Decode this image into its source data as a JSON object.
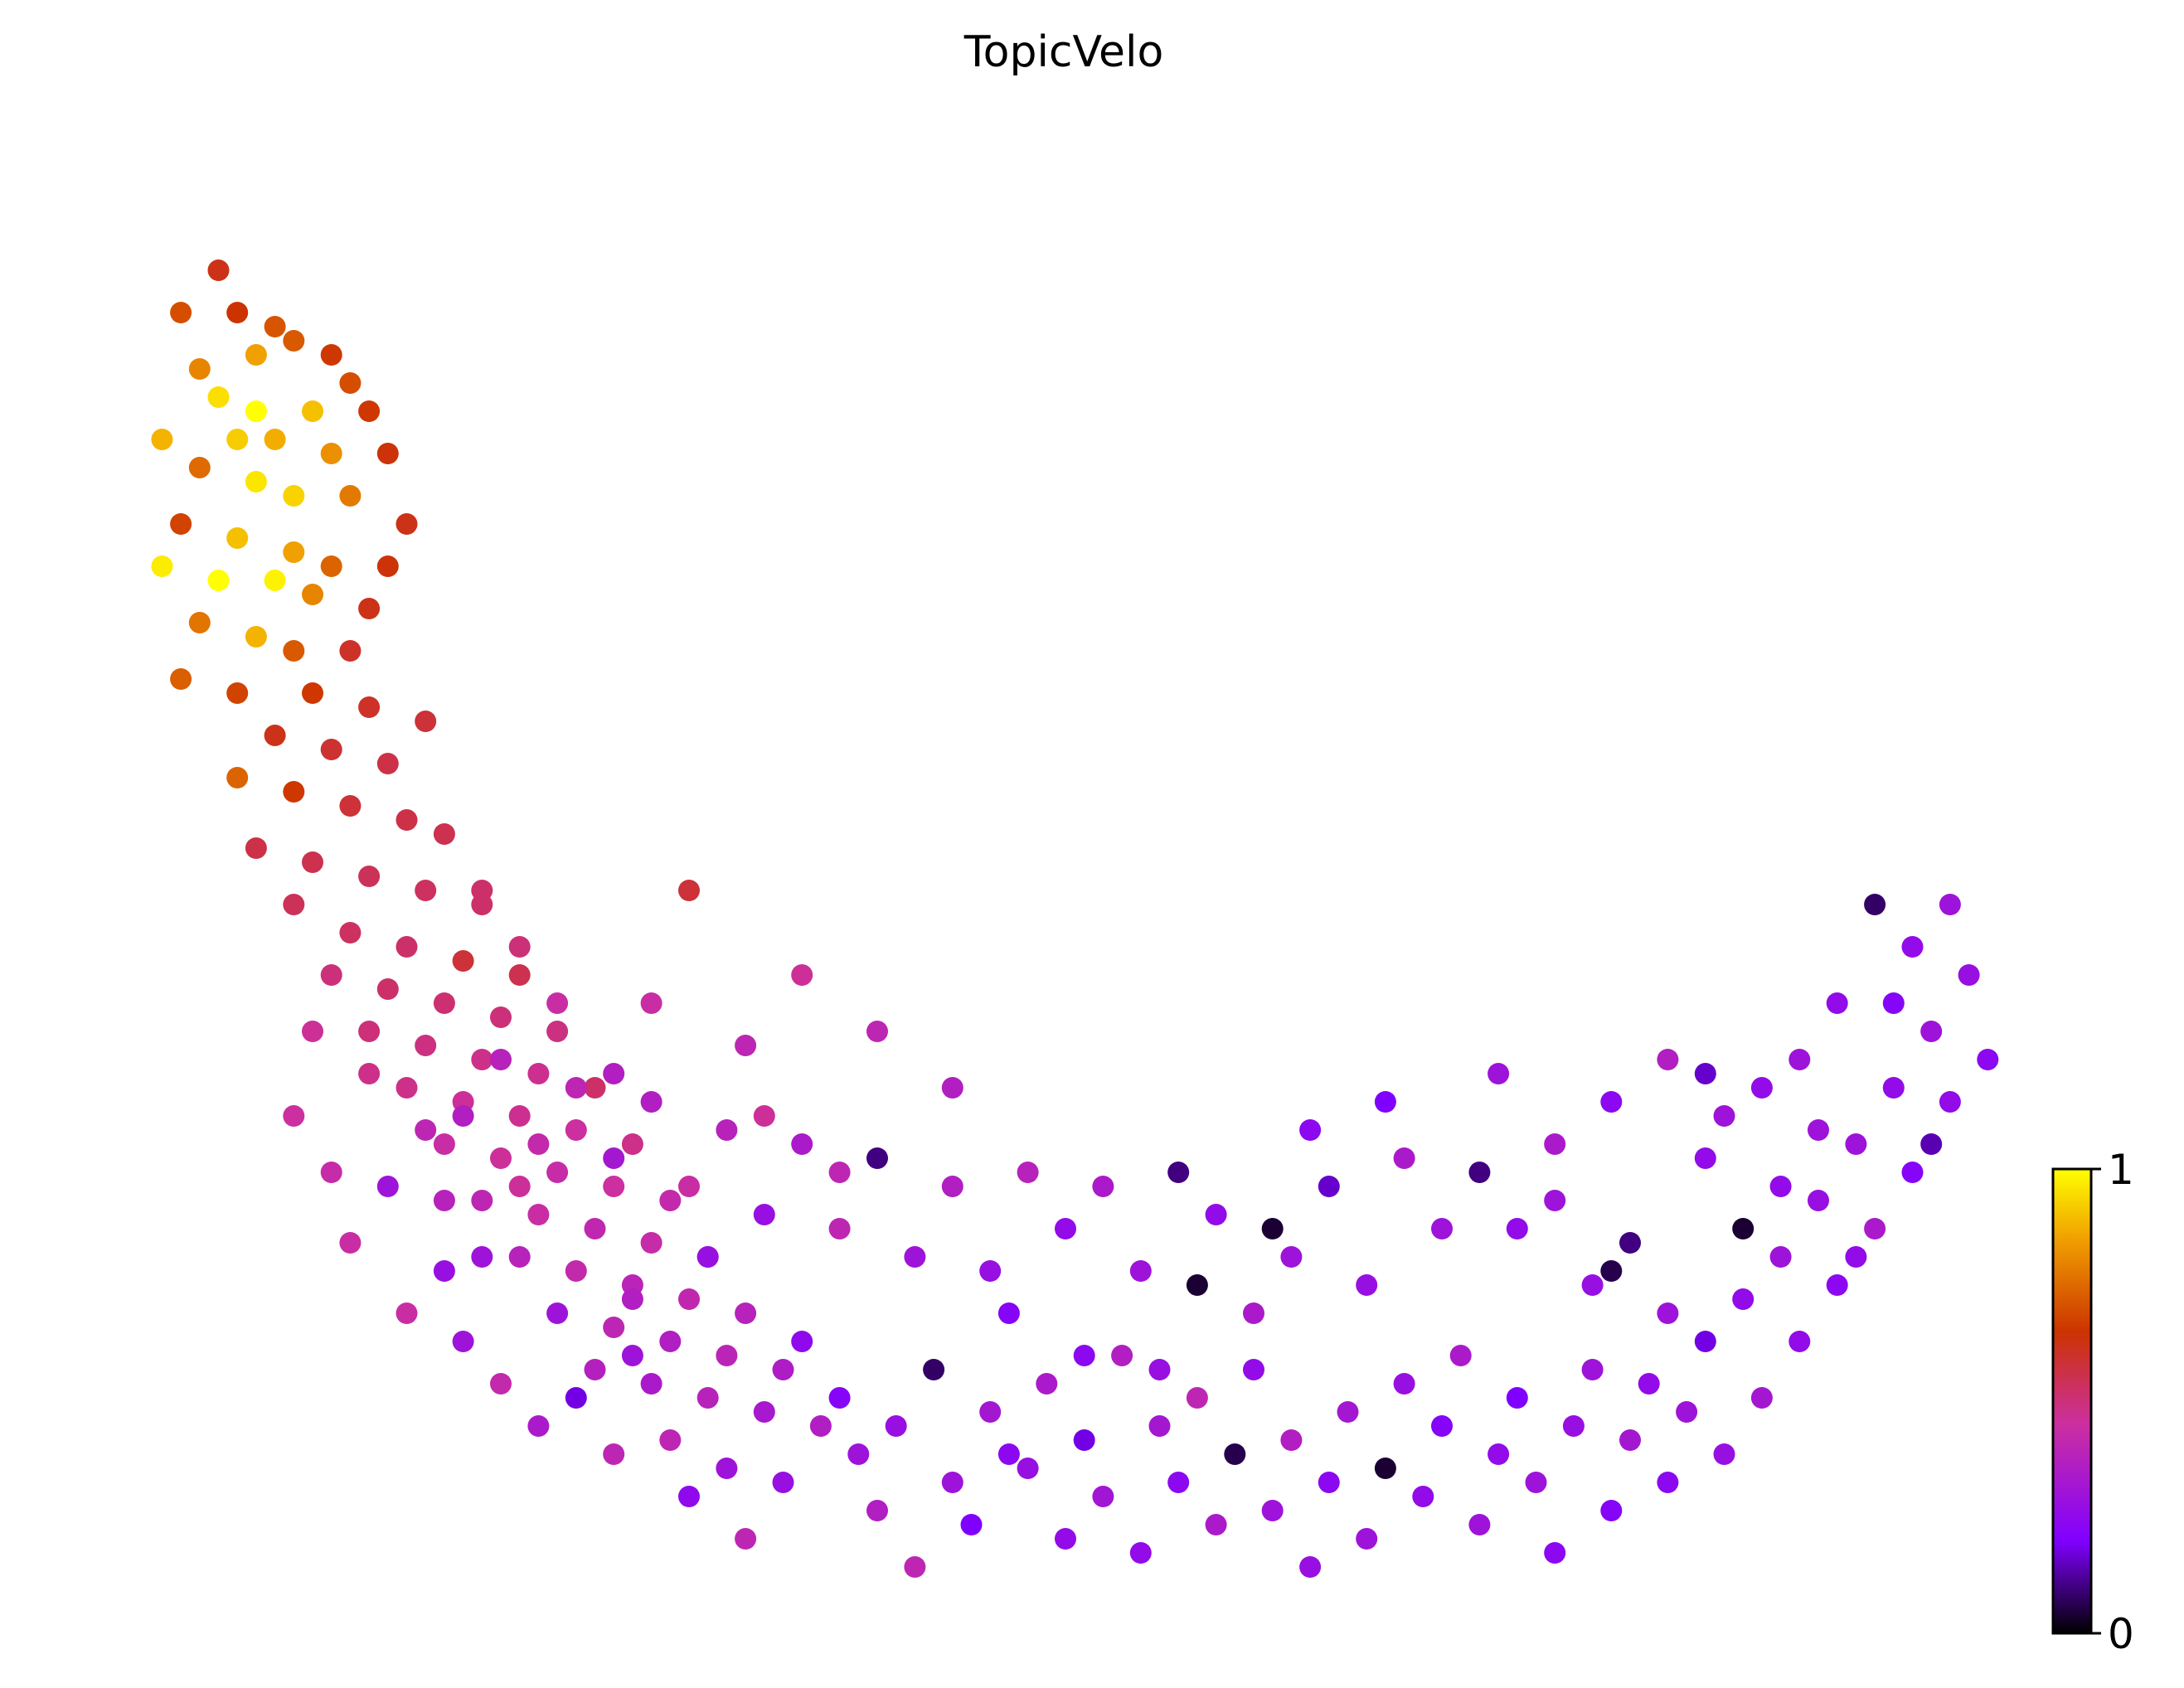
{
  "chart_data": {
    "type": "scatter",
    "title": "TopicVelo",
    "xlabel": "",
    "ylabel": "",
    "xlim": [
      0,
      1
    ],
    "ylim": [
      0,
      1
    ],
    "axes_visible": false,
    "grid": false,
    "colormap": "gnuplot",
    "colormap_stops": [
      "#000000",
      "#8000ff",
      "#cc2fa0",
      "#cc3300",
      "#f0a000",
      "#ffff00"
    ],
    "colorbar": {
      "min": 0,
      "max": 1,
      "tick_labels": [
        "0",
        "1"
      ],
      "placement": "right-bottom"
    },
    "points": [
      [
        0.05,
        0.92,
        0.62
      ],
      [
        0.03,
        0.89,
        0.7
      ],
      [
        0.06,
        0.89,
        0.65
      ],
      [
        0.08,
        0.88,
        0.71
      ],
      [
        0.04,
        0.85,
        0.8
      ],
      [
        0.07,
        0.86,
        0.85
      ],
      [
        0.09,
        0.87,
        0.72
      ],
      [
        0.11,
        0.86,
        0.66
      ],
      [
        0.12,
        0.84,
        0.7
      ],
      [
        0.05,
        0.83,
        0.95
      ],
      [
        0.07,
        0.82,
        1.0
      ],
      [
        0.1,
        0.82,
        0.9
      ],
      [
        0.13,
        0.82,
        0.66
      ],
      [
        0.02,
        0.8,
        0.88
      ],
      [
        0.06,
        0.8,
        0.92
      ],
      [
        0.08,
        0.8,
        0.87
      ],
      [
        0.11,
        0.79,
        0.82
      ],
      [
        0.14,
        0.79,
        0.64
      ],
      [
        0.04,
        0.78,
        0.75
      ],
      [
        0.07,
        0.77,
        0.96
      ],
      [
        0.09,
        0.76,
        0.93
      ],
      [
        0.12,
        0.76,
        0.78
      ],
      [
        0.15,
        0.74,
        0.62
      ],
      [
        0.03,
        0.74,
        0.68
      ],
      [
        0.06,
        0.73,
        0.9
      ],
      [
        0.09,
        0.72,
        0.85
      ],
      [
        0.11,
        0.71,
        0.74
      ],
      [
        0.14,
        0.71,
        0.64
      ],
      [
        0.02,
        0.71,
        0.97
      ],
      [
        0.05,
        0.7,
        1.0
      ],
      [
        0.08,
        0.7,
        0.98
      ],
      [
        0.1,
        0.69,
        0.8
      ],
      [
        0.13,
        0.68,
        0.62
      ],
      [
        0.04,
        0.67,
        0.77
      ],
      [
        0.07,
        0.66,
        0.88
      ],
      [
        0.09,
        0.65,
        0.72
      ],
      [
        0.12,
        0.65,
        0.6
      ],
      [
        0.03,
        0.63,
        0.73
      ],
      [
        0.06,
        0.62,
        0.68
      ],
      [
        0.1,
        0.62,
        0.66
      ],
      [
        0.13,
        0.61,
        0.6
      ],
      [
        0.16,
        0.6,
        0.58
      ],
      [
        0.08,
        0.59,
        0.62
      ],
      [
        0.11,
        0.58,
        0.59
      ],
      [
        0.14,
        0.57,
        0.56
      ],
      [
        0.06,
        0.56,
        0.74
      ],
      [
        0.09,
        0.55,
        0.66
      ],
      [
        0.12,
        0.54,
        0.58
      ],
      [
        0.15,
        0.53,
        0.56
      ],
      [
        0.17,
        0.52,
        0.55
      ],
      [
        0.07,
        0.51,
        0.56
      ],
      [
        0.1,
        0.5,
        0.55
      ],
      [
        0.13,
        0.49,
        0.54
      ],
      [
        0.16,
        0.48,
        0.53
      ],
      [
        0.19,
        0.47,
        0.52
      ],
      [
        0.09,
        0.47,
        0.54
      ],
      [
        0.12,
        0.45,
        0.53
      ],
      [
        0.15,
        0.44,
        0.52
      ],
      [
        0.18,
        0.43,
        0.58
      ],
      [
        0.21,
        0.42,
        0.55
      ],
      [
        0.11,
        0.42,
        0.5
      ],
      [
        0.14,
        0.41,
        0.52
      ],
      [
        0.17,
        0.4,
        0.51
      ],
      [
        0.2,
        0.39,
        0.5
      ],
      [
        0.23,
        0.38,
        0.49
      ],
      [
        0.13,
        0.38,
        0.5
      ],
      [
        0.16,
        0.37,
        0.49
      ],
      [
        0.19,
        0.36,
        0.48
      ],
      [
        0.22,
        0.35,
        0.47
      ],
      [
        0.25,
        0.34,
        0.52
      ],
      [
        0.15,
        0.34,
        0.48
      ],
      [
        0.18,
        0.33,
        0.46
      ],
      [
        0.21,
        0.32,
        0.47
      ],
      [
        0.24,
        0.31,
        0.45
      ],
      [
        0.27,
        0.3,
        0.48
      ],
      [
        0.17,
        0.3,
        0.44
      ],
      [
        0.2,
        0.29,
        0.46
      ],
      [
        0.23,
        0.28,
        0.43
      ],
      [
        0.26,
        0.27,
        0.45
      ],
      [
        0.29,
        0.26,
        0.42
      ],
      [
        0.19,
        0.26,
        0.4
      ],
      [
        0.22,
        0.25,
        0.44
      ],
      [
        0.25,
        0.24,
        0.41
      ],
      [
        0.28,
        0.23,
        0.43
      ],
      [
        0.31,
        0.22,
        0.4
      ],
      [
        0.21,
        0.22,
        0.38
      ],
      [
        0.24,
        0.21,
        0.42
      ],
      [
        0.27,
        0.2,
        0.39
      ],
      [
        0.3,
        0.19,
        0.41
      ],
      [
        0.33,
        0.18,
        0.38
      ],
      [
        0.23,
        0.18,
        0.3
      ],
      [
        0.26,
        0.17,
        0.4
      ],
      [
        0.29,
        0.16,
        0.36
      ],
      [
        0.32,
        0.15,
        0.39
      ],
      [
        0.35,
        0.14,
        0.35
      ],
      [
        0.25,
        0.14,
        0.37
      ],
      [
        0.28,
        0.13,
        0.34
      ],
      [
        0.31,
        0.12,
        0.38
      ],
      [
        0.34,
        0.11,
        0.33
      ],
      [
        0.37,
        0.1,
        0.36
      ],
      [
        0.1,
        0.38,
        0.46
      ],
      [
        0.13,
        0.35,
        0.48
      ],
      [
        0.09,
        0.32,
        0.45
      ],
      [
        0.16,
        0.31,
        0.4
      ],
      [
        0.11,
        0.28,
        0.43
      ],
      [
        0.14,
        0.27,
        0.3
      ],
      [
        0.12,
        0.23,
        0.44
      ],
      [
        0.17,
        0.21,
        0.28
      ],
      [
        0.15,
        0.18,
        0.44
      ],
      [
        0.18,
        0.16,
        0.3
      ],
      [
        0.2,
        0.13,
        0.42
      ],
      [
        0.22,
        0.1,
        0.34
      ],
      [
        0.24,
        0.12,
        0.18
      ],
      [
        0.26,
        0.08,
        0.4
      ],
      [
        0.27,
        0.15,
        0.3
      ],
      [
        0.29,
        0.09,
        0.4
      ],
      [
        0.3,
        0.05,
        0.25
      ],
      [
        0.32,
        0.07,
        0.3
      ],
      [
        0.33,
        0.02,
        0.4
      ],
      [
        0.35,
        0.06,
        0.28
      ],
      [
        0.36,
        0.16,
        0.25
      ],
      [
        0.38,
        0.12,
        0.22
      ],
      [
        0.39,
        0.08,
        0.3
      ],
      [
        0.4,
        0.04,
        0.36
      ],
      [
        0.41,
        0.1,
        0.28
      ],
      [
        0.42,
        0.0,
        0.4
      ],
      [
        0.43,
        0.14,
        0.08
      ],
      [
        0.44,
        0.06,
        0.3
      ],
      [
        0.45,
        0.03,
        0.2
      ],
      [
        0.46,
        0.11,
        0.32
      ],
      [
        0.47,
        0.18,
        0.22
      ],
      [
        0.48,
        0.07,
        0.28
      ],
      [
        0.49,
        0.13,
        0.34
      ],
      [
        0.5,
        0.02,
        0.26
      ],
      [
        0.51,
        0.09,
        0.18
      ],
      [
        0.52,
        0.05,
        0.31
      ],
      [
        0.53,
        0.15,
        0.36
      ],
      [
        0.54,
        0.01,
        0.26
      ],
      [
        0.55,
        0.1,
        0.32
      ],
      [
        0.56,
        0.06,
        0.24
      ],
      [
        0.57,
        0.12,
        0.4
      ],
      [
        0.58,
        0.03,
        0.34
      ],
      [
        0.59,
        0.08,
        0.06
      ],
      [
        0.6,
        0.14,
        0.26
      ],
      [
        0.61,
        0.04,
        0.3
      ],
      [
        0.62,
        0.09,
        0.36
      ],
      [
        0.63,
        0.0,
        0.28
      ],
      [
        0.64,
        0.06,
        0.24
      ],
      [
        0.65,
        0.11,
        0.32
      ],
      [
        0.66,
        0.02,
        0.3
      ],
      [
        0.67,
        0.07,
        0.04
      ],
      [
        0.68,
        0.13,
        0.28
      ],
      [
        0.69,
        0.05,
        0.26
      ],
      [
        0.7,
        0.1,
        0.22
      ],
      [
        0.71,
        0.15,
        0.34
      ],
      [
        0.72,
        0.03,
        0.3
      ],
      [
        0.73,
        0.08,
        0.26
      ],
      [
        0.74,
        0.12,
        0.2
      ],
      [
        0.75,
        0.06,
        0.3
      ],
      [
        0.76,
        0.01,
        0.24
      ],
      [
        0.77,
        0.1,
        0.28
      ],
      [
        0.78,
        0.14,
        0.3
      ],
      [
        0.79,
        0.04,
        0.22
      ],
      [
        0.8,
        0.09,
        0.32
      ],
      [
        0.81,
        0.13,
        0.26
      ],
      [
        0.82,
        0.06,
        0.24
      ],
      [
        0.83,
        0.11,
        0.3
      ],
      [
        0.84,
        0.16,
        0.18
      ],
      [
        0.85,
        0.08,
        0.28
      ],
      [
        0.86,
        0.19,
        0.26
      ],
      [
        0.87,
        0.12,
        0.32
      ],
      [
        0.88,
        0.22,
        0.3
      ],
      [
        0.89,
        0.16,
        0.26
      ],
      [
        0.9,
        0.26,
        0.28
      ],
      [
        0.91,
        0.2,
        0.24
      ],
      [
        0.92,
        0.3,
        0.3
      ],
      [
        0.93,
        0.24,
        0.34
      ],
      [
        0.94,
        0.34,
        0.26
      ],
      [
        0.95,
        0.28,
        0.22
      ],
      [
        0.96,
        0.38,
        0.3
      ],
      [
        0.97,
        0.33,
        0.26
      ],
      [
        0.98,
        0.42,
        0.28
      ],
      [
        0.99,
        0.36,
        0.24
      ],
      [
        0.96,
        0.3,
        0.14
      ],
      [
        0.94,
        0.4,
        0.22
      ],
      [
        0.92,
        0.22,
        0.26
      ],
      [
        0.9,
        0.31,
        0.3
      ],
      [
        0.88,
        0.27,
        0.26
      ],
      [
        0.86,
        0.24,
        0.04
      ],
      [
        0.84,
        0.29,
        0.26
      ],
      [
        0.82,
        0.18,
        0.3
      ],
      [
        0.8,
        0.23,
        0.1
      ],
      [
        0.78,
        0.2,
        0.28
      ],
      [
        0.76,
        0.26,
        0.3
      ],
      [
        0.74,
        0.24,
        0.26
      ],
      [
        0.72,
        0.28,
        0.1
      ],
      [
        0.7,
        0.24,
        0.3
      ],
      [
        0.68,
        0.29,
        0.34
      ],
      [
        0.66,
        0.2,
        0.28
      ],
      [
        0.64,
        0.27,
        0.16
      ],
      [
        0.62,
        0.22,
        0.3
      ],
      [
        0.6,
        0.18,
        0.34
      ],
      [
        0.58,
        0.25,
        0.26
      ],
      [
        0.56,
        0.28,
        0.1
      ],
      [
        0.54,
        0.21,
        0.3
      ],
      [
        0.52,
        0.27,
        0.34
      ],
      [
        0.5,
        0.24,
        0.26
      ],
      [
        0.48,
        0.28,
        0.38
      ],
      [
        0.46,
        0.21,
        0.28
      ],
      [
        0.44,
        0.27,
        0.36
      ],
      [
        0.42,
        0.22,
        0.3
      ],
      [
        0.4,
        0.29,
        0.1
      ],
      [
        0.38,
        0.24,
        0.4
      ],
      [
        0.36,
        0.3,
        0.34
      ],
      [
        0.34,
        0.25,
        0.28
      ],
      [
        0.32,
        0.31,
        0.38
      ],
      [
        0.3,
        0.27,
        0.44
      ],
      [
        0.28,
        0.33,
        0.36
      ],
      [
        0.26,
        0.29,
        0.32
      ],
      [
        0.24,
        0.34,
        0.4
      ],
      [
        0.22,
        0.3,
        0.42
      ],
      [
        0.2,
        0.36,
        0.38
      ],
      [
        0.18,
        0.32,
        0.36
      ],
      [
        0.3,
        0.48,
        0.58
      ],
      [
        0.36,
        0.42,
        0.46
      ],
      [
        0.4,
        0.38,
        0.4
      ],
      [
        0.44,
        0.34,
        0.36
      ],
      [
        0.33,
        0.37,
        0.4
      ],
      [
        0.28,
        0.4,
        0.44
      ],
      [
        0.26,
        0.35,
        0.36
      ],
      [
        0.34,
        0.32,
        0.46
      ],
      [
        0.38,
        0.28,
        0.4
      ],
      [
        0.31,
        0.22,
        0.28
      ],
      [
        0.27,
        0.19,
        0.36
      ],
      [
        0.21,
        0.27,
        0.46
      ],
      [
        0.19,
        0.22,
        0.3
      ],
      [
        0.17,
        0.26,
        0.38
      ],
      [
        0.23,
        0.4,
        0.44
      ],
      [
        0.21,
        0.44,
        0.5
      ],
      [
        0.19,
        0.48,
        0.52
      ],
      [
        0.85,
        0.32,
        0.3
      ],
      [
        0.82,
        0.36,
        0.36
      ],
      [
        0.79,
        0.33,
        0.24
      ],
      [
        0.76,
        0.3,
        0.34
      ],
      [
        0.73,
        0.35,
        0.3
      ],
      [
        0.95,
        0.44,
        0.26
      ],
      [
        0.97,
        0.47,
        0.3
      ],
      [
        0.93,
        0.47,
        0.08
      ],
      [
        0.91,
        0.4,
        0.26
      ],
      [
        0.89,
        0.36,
        0.3
      ],
      [
        0.87,
        0.34,
        0.26
      ],
      [
        0.84,
        0.35,
        0.16
      ],
      [
        0.79,
        0.21,
        0.06
      ],
      [
        0.67,
        0.33,
        0.2
      ],
      [
        0.63,
        0.31,
        0.24
      ],
      [
        0.61,
        0.24,
        0.04
      ],
      [
        0.57,
        0.2,
        0.04
      ],
      [
        0.55,
        0.14,
        0.28
      ],
      [
        0.51,
        0.15,
        0.24
      ],
      [
        0.47,
        0.08,
        0.24
      ]
    ]
  }
}
